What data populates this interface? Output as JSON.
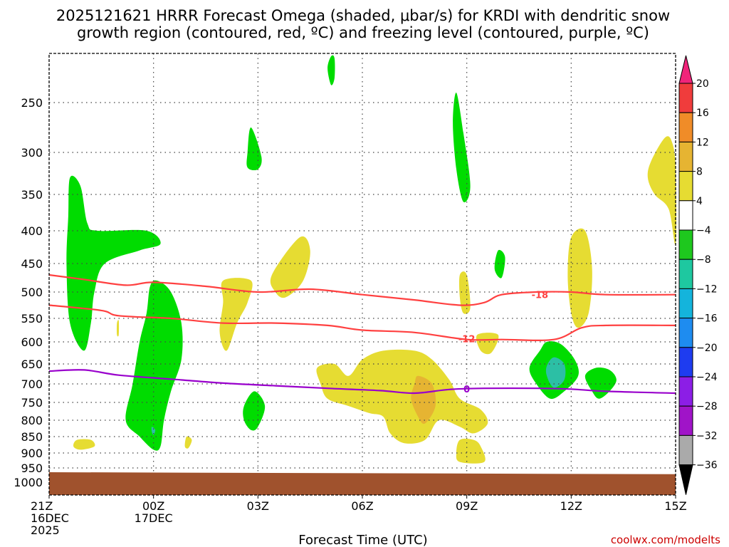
{
  "chart_data": {
    "type": "contour",
    "title_line1": "2025121621 HRRR Forecast Omega (shaded, μbar/s) for KRDI with dendritic snow",
    "title_line2": "growth region (contoured, red, ºC) and freezing level (contoured, purple, ºC)",
    "xlabel": "Forecast Time (UTC)",
    "credit": "coolwx.com/modelts",
    "x_range_hours": [
      0,
      18
    ],
    "x_ticks": [
      {
        "hour": 0,
        "lines": [
          "21Z",
          "16DEC",
          "2025"
        ]
      },
      {
        "hour": 3,
        "lines": [
          "00Z",
          "17DEC"
        ]
      },
      {
        "hour": 6,
        "lines": [
          "03Z"
        ]
      },
      {
        "hour": 9,
        "lines": [
          "06Z"
        ]
      },
      {
        "hour": 12,
        "lines": [
          "09Z"
        ]
      },
      {
        "hour": 15,
        "lines": [
          "12Z"
        ]
      },
      {
        "hour": 18,
        "lines": [
          "15Z"
        ]
      }
    ],
    "y_ticks_hpa": [
      250,
      300,
      350,
      400,
      450,
      500,
      550,
      600,
      650,
      700,
      750,
      800,
      850,
      900,
      950,
      1000
    ],
    "y_range_hpa": [
      200,
      1040
    ],
    "colorbar": {
      "labels": [
        "20",
        "16",
        "12",
        "8",
        "4",
        "−4",
        "−8",
        "−12",
        "−16",
        "−20",
        "−24",
        "−28",
        "−32",
        "−36"
      ],
      "levels": [
        20,
        16,
        12,
        8,
        4,
        -4,
        -8,
        -12,
        -16,
        -20,
        -24,
        -28,
        -32,
        -36
      ],
      "colors": [
        "#f0247a",
        "#f03c3c",
        "#f08c28",
        "#e6b432",
        "#e6dc32",
        "#ffffff",
        "#1ec81e",
        "#1ec8a0",
        "#14b4dc",
        "#1e8cf0",
        "#1e3cf0",
        "#8c1ee6",
        "#a014c8",
        "#aaaaaa",
        "#000000"
      ]
    },
    "omega_regions": [
      {
        "level": -4,
        "color": "#00dc00",
        "points": [
          [
            0.6,
            330
          ],
          [
            0.9,
            340
          ],
          [
            1.1,
            390
          ],
          [
            1.4,
            400
          ],
          [
            2.8,
            400
          ],
          [
            3.2,
            420
          ],
          [
            2.6,
            430
          ],
          [
            1.6,
            450
          ],
          [
            1.3,
            500
          ],
          [
            1.2,
            560
          ],
          [
            1.0,
            620
          ],
          [
            0.6,
            560
          ],
          [
            0.5,
            450
          ],
          [
            0.55,
            380
          ]
        ]
      },
      {
        "level": -4,
        "color": "#00dc00",
        "points": [
          [
            2.9,
            490
          ],
          [
            3.1,
            480
          ],
          [
            3.5,
            500
          ],
          [
            3.8,
            560
          ],
          [
            3.8,
            640
          ],
          [
            3.5,
            720
          ],
          [
            3.3,
            800
          ],
          [
            3.2,
            880
          ],
          [
            3.0,
            890
          ],
          [
            2.6,
            850
          ],
          [
            2.2,
            800
          ],
          [
            2.4,
            700
          ],
          [
            2.6,
            600
          ],
          [
            2.8,
            540
          ]
        ]
      },
      {
        "level": -4,
        "color": "#00dc00",
        "points": [
          [
            5.8,
            275
          ],
          [
            6.1,
            305
          ],
          [
            6.0,
            320
          ],
          [
            5.7,
            318
          ],
          [
            5.7,
            300
          ]
        ]
      },
      {
        "level": -4,
        "color": "#00dc00",
        "points": [
          [
            5.6,
            760
          ],
          [
            5.9,
            720
          ],
          [
            6.2,
            760
          ],
          [
            6.0,
            820
          ],
          [
            5.8,
            830
          ],
          [
            5.6,
            800
          ]
        ]
      },
      {
        "level": -4,
        "color": "#00dc00",
        "points": [
          [
            8.1,
            203
          ],
          [
            8.2,
            205
          ],
          [
            8.2,
            225
          ],
          [
            8.1,
            232
          ],
          [
            8.0,
            215
          ]
        ]
      },
      {
        "level": -4,
        "color": "#00dc00",
        "points": [
          [
            11.7,
            240
          ],
          [
            11.9,
            280
          ],
          [
            12.1,
            340
          ],
          [
            11.9,
            360
          ],
          [
            11.7,
            320
          ],
          [
            11.6,
            270
          ]
        ]
      },
      {
        "level": -4,
        "color": "#00dc00",
        "points": [
          [
            12.9,
            430
          ],
          [
            13.1,
            440
          ],
          [
            13.0,
            475
          ],
          [
            12.8,
            460
          ]
        ]
      },
      {
        "level": -4,
        "color": "#00dc00",
        "points": [
          [
            14.3,
            600
          ],
          [
            14.7,
            605
          ],
          [
            15.1,
            640
          ],
          [
            15.2,
            680
          ],
          [
            14.8,
            720
          ],
          [
            14.4,
            740
          ],
          [
            14.0,
            700
          ],
          [
            13.8,
            660
          ],
          [
            14.1,
            620
          ]
        ]
      },
      {
        "level": -4,
        "color": "#00dc00",
        "points": [
          [
            15.4,
            680
          ],
          [
            15.7,
            660
          ],
          [
            16.1,
            665
          ],
          [
            16.3,
            690
          ],
          [
            16.1,
            720
          ],
          [
            15.8,
            740
          ],
          [
            15.6,
            720
          ]
        ]
      },
      {
        "level": -8,
        "color": "#2cbfa5",
        "points": [
          [
            14.5,
            635
          ],
          [
            14.8,
            650
          ],
          [
            14.8,
            690
          ],
          [
            14.5,
            710
          ],
          [
            14.3,
            680
          ],
          [
            14.3,
            655
          ]
        ]
      },
      {
        "level": -8,
        "color": "#2cbfa5",
        "points": [
          [
            2.95,
            820
          ],
          [
            3.05,
            830
          ],
          [
            3.0,
            845
          ],
          [
            2.95,
            835
          ]
        ]
      },
      {
        "level": 4,
        "color": "#e6dc32",
        "points": [
          [
            5.0,
            480
          ],
          [
            5.8,
            480
          ],
          [
            5.7,
            520
          ],
          [
            5.4,
            560
          ],
          [
            5.1,
            620
          ],
          [
            4.9,
            580
          ],
          [
            5.0,
            520
          ]
        ]
      },
      {
        "level": 4,
        "color": "#e6dc32",
        "points": [
          [
            6.4,
            470
          ],
          [
            7.2,
            410
          ],
          [
            7.5,
            430
          ],
          [
            7.3,
            480
          ],
          [
            6.8,
            510
          ],
          [
            6.5,
            500
          ]
        ]
      },
      {
        "level": 4,
        "color": "#e6dc32",
        "points": [
          [
            0.8,
            860
          ],
          [
            1.2,
            860
          ],
          [
            1.3,
            880
          ],
          [
            0.9,
            890
          ],
          [
            0.7,
            880
          ]
        ]
      },
      {
        "level": 4,
        "color": "#e6dc32",
        "points": [
          [
            1.95,
            560
          ],
          [
            2.0,
            555
          ],
          [
            2.0,
            585
          ],
          [
            1.95,
            585
          ]
        ]
      },
      {
        "level": 4,
        "color": "#e6dc32",
        "points": [
          [
            3.95,
            850
          ],
          [
            4.1,
            860
          ],
          [
            4.0,
            885
          ],
          [
            3.9,
            880
          ]
        ]
      },
      {
        "level": 4,
        "color": "#e6dc32",
        "points": [
          [
            7.7,
            660
          ],
          [
            8.2,
            650
          ],
          [
            8.6,
            680
          ],
          [
            9.0,
            640
          ],
          [
            9.6,
            620
          ],
          [
            10.5,
            620
          ],
          [
            11.0,
            640
          ],
          [
            11.5,
            690
          ],
          [
            11.8,
            740
          ],
          [
            12.4,
            770
          ],
          [
            12.6,
            810
          ],
          [
            12.2,
            840
          ],
          [
            11.8,
            820
          ],
          [
            11.2,
            800
          ],
          [
            10.8,
            860
          ],
          [
            10.2,
            870
          ],
          [
            9.8,
            840
          ],
          [
            9.6,
            790
          ],
          [
            9.2,
            780
          ],
          [
            8.6,
            760
          ],
          [
            8.0,
            740
          ],
          [
            7.8,
            700
          ]
        ]
      },
      {
        "level": 4,
        "color": "#e6dc32",
        "points": [
          [
            11.8,
            860
          ],
          [
            12.2,
            860
          ],
          [
            12.4,
            880
          ],
          [
            12.5,
            930
          ],
          [
            11.8,
            930
          ],
          [
            11.7,
            900
          ]
        ]
      },
      {
        "level": 4,
        "color": "#e6dc32",
        "points": [
          [
            11.8,
            470
          ],
          [
            12.0,
            470
          ],
          [
            12.1,
            530
          ],
          [
            11.9,
            540
          ],
          [
            11.8,
            510
          ]
        ]
      },
      {
        "level": 4,
        "color": "#e6dc32",
        "points": [
          [
            12.3,
            585
          ],
          [
            12.9,
            585
          ],
          [
            12.7,
            625
          ],
          [
            12.4,
            620
          ]
        ]
      },
      {
        "level": 4,
        "color": "#e6dc32",
        "points": [
          [
            15.0,
            410
          ],
          [
            15.4,
            400
          ],
          [
            15.6,
            460
          ],
          [
            15.5,
            540
          ],
          [
            15.2,
            570
          ],
          [
            15.0,
            540
          ],
          [
            14.9,
            470
          ]
        ]
      },
      {
        "level": 4,
        "color": "#e6dc32",
        "points": [
          [
            17.7,
            285
          ],
          [
            17.9,
            290
          ],
          [
            18.0,
            320
          ],
          [
            18.0,
            420
          ],
          [
            17.8,
            370
          ],
          [
            17.4,
            350
          ],
          [
            17.2,
            330
          ],
          [
            17.3,
            310
          ]
        ]
      },
      {
        "level": 8,
        "color": "#e6b432",
        "points": [
          [
            10.6,
            680
          ],
          [
            11.0,
            700
          ],
          [
            11.1,
            760
          ],
          [
            10.8,
            810
          ],
          [
            10.6,
            790
          ],
          [
            10.4,
            740
          ],
          [
            10.5,
            700
          ]
        ]
      }
    ],
    "dgz_contours": [
      {
        "label": "-18",
        "color": "#ff4040",
        "points": [
          [
            0,
            470
          ],
          [
            1.0,
            478
          ],
          [
            2.2,
            488
          ],
          [
            3.0,
            483
          ],
          [
            4.5,
            490
          ],
          [
            6.0,
            500
          ],
          [
            7.5,
            495
          ],
          [
            9.0,
            505
          ],
          [
            10.5,
            515
          ],
          [
            11.8,
            525
          ],
          [
            12.5,
            520
          ],
          [
            13.0,
            505
          ],
          [
            14.0,
            500
          ],
          [
            15.0,
            500
          ],
          [
            16.0,
            505
          ],
          [
            18.0,
            505
          ]
        ]
      },
      {
        "label": "-12",
        "color": "#ff4040",
        "points": [
          [
            0,
            525
          ],
          [
            1.5,
            535
          ],
          [
            2.0,
            545
          ],
          [
            3.5,
            550
          ],
          [
            5.0,
            560
          ],
          [
            6.5,
            560
          ],
          [
            8.0,
            565
          ],
          [
            9.0,
            575
          ],
          [
            10.5,
            580
          ],
          [
            12.0,
            595
          ],
          [
            13.0,
            595
          ],
          [
            14.5,
            595
          ],
          [
            15.3,
            570
          ],
          [
            16.0,
            565
          ],
          [
            18.0,
            565
          ]
        ]
      },
      {
        "label": "0",
        "color": "#9900cc",
        "points": [
          [
            0,
            668
          ],
          [
            1.0,
            665
          ],
          [
            2.0,
            678
          ],
          [
            3.5,
            688
          ],
          [
            5.0,
            698
          ],
          [
            6.5,
            705
          ],
          [
            8.0,
            712
          ],
          [
            9.5,
            718
          ],
          [
            10.5,
            725
          ],
          [
            11.5,
            715
          ],
          [
            12.5,
            712
          ],
          [
            14.0,
            712
          ],
          [
            15.0,
            714
          ],
          [
            16.0,
            720
          ],
          [
            18.0,
            725
          ]
        ]
      }
    ],
    "terrain": {
      "color": "#a0522d",
      "surface_hpa_start": 965,
      "surface_hpa_end": 972
    }
  }
}
